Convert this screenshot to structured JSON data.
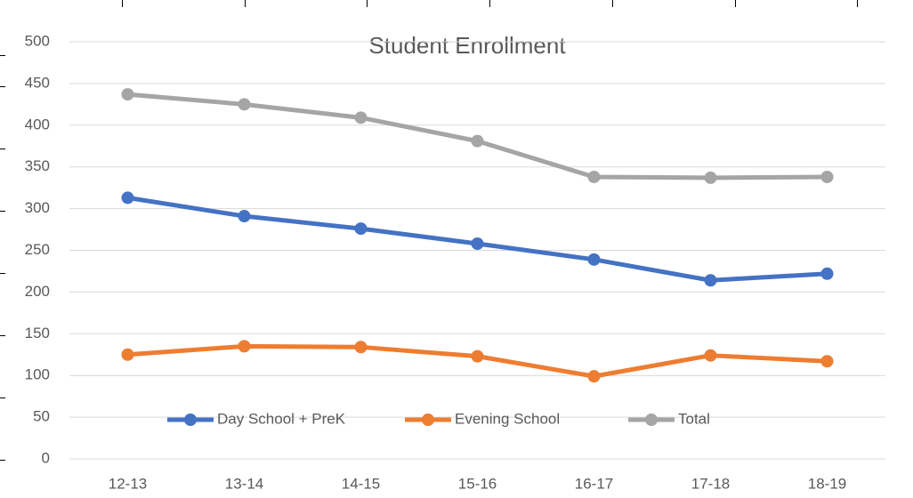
{
  "chart_data": {
    "type": "line",
    "title": "Student Enrollment",
    "categories": [
      "12-13",
      "13-14",
      "14-15",
      "15-16",
      "16-17",
      "17-18",
      "18-19"
    ],
    "series": [
      {
        "name": "Day School + PreK",
        "color": "#4472c4",
        "values": [
          313,
          291,
          276,
          258,
          239,
          214,
          222
        ]
      },
      {
        "name": "Evening School",
        "color": "#ed7d31",
        "values": [
          125,
          135,
          134,
          123,
          99,
          124,
          117
        ]
      },
      {
        "name": "Total",
        "color": "#a5a5a5",
        "values": [
          437,
          425,
          409,
          381,
          338,
          337,
          338
        ]
      }
    ],
    "ylim": [
      0,
      500
    ],
    "yticks": [
      0,
      50,
      100,
      150,
      200,
      250,
      300,
      350,
      400,
      450,
      500
    ],
    "grid": true,
    "legend": "bottom"
  }
}
